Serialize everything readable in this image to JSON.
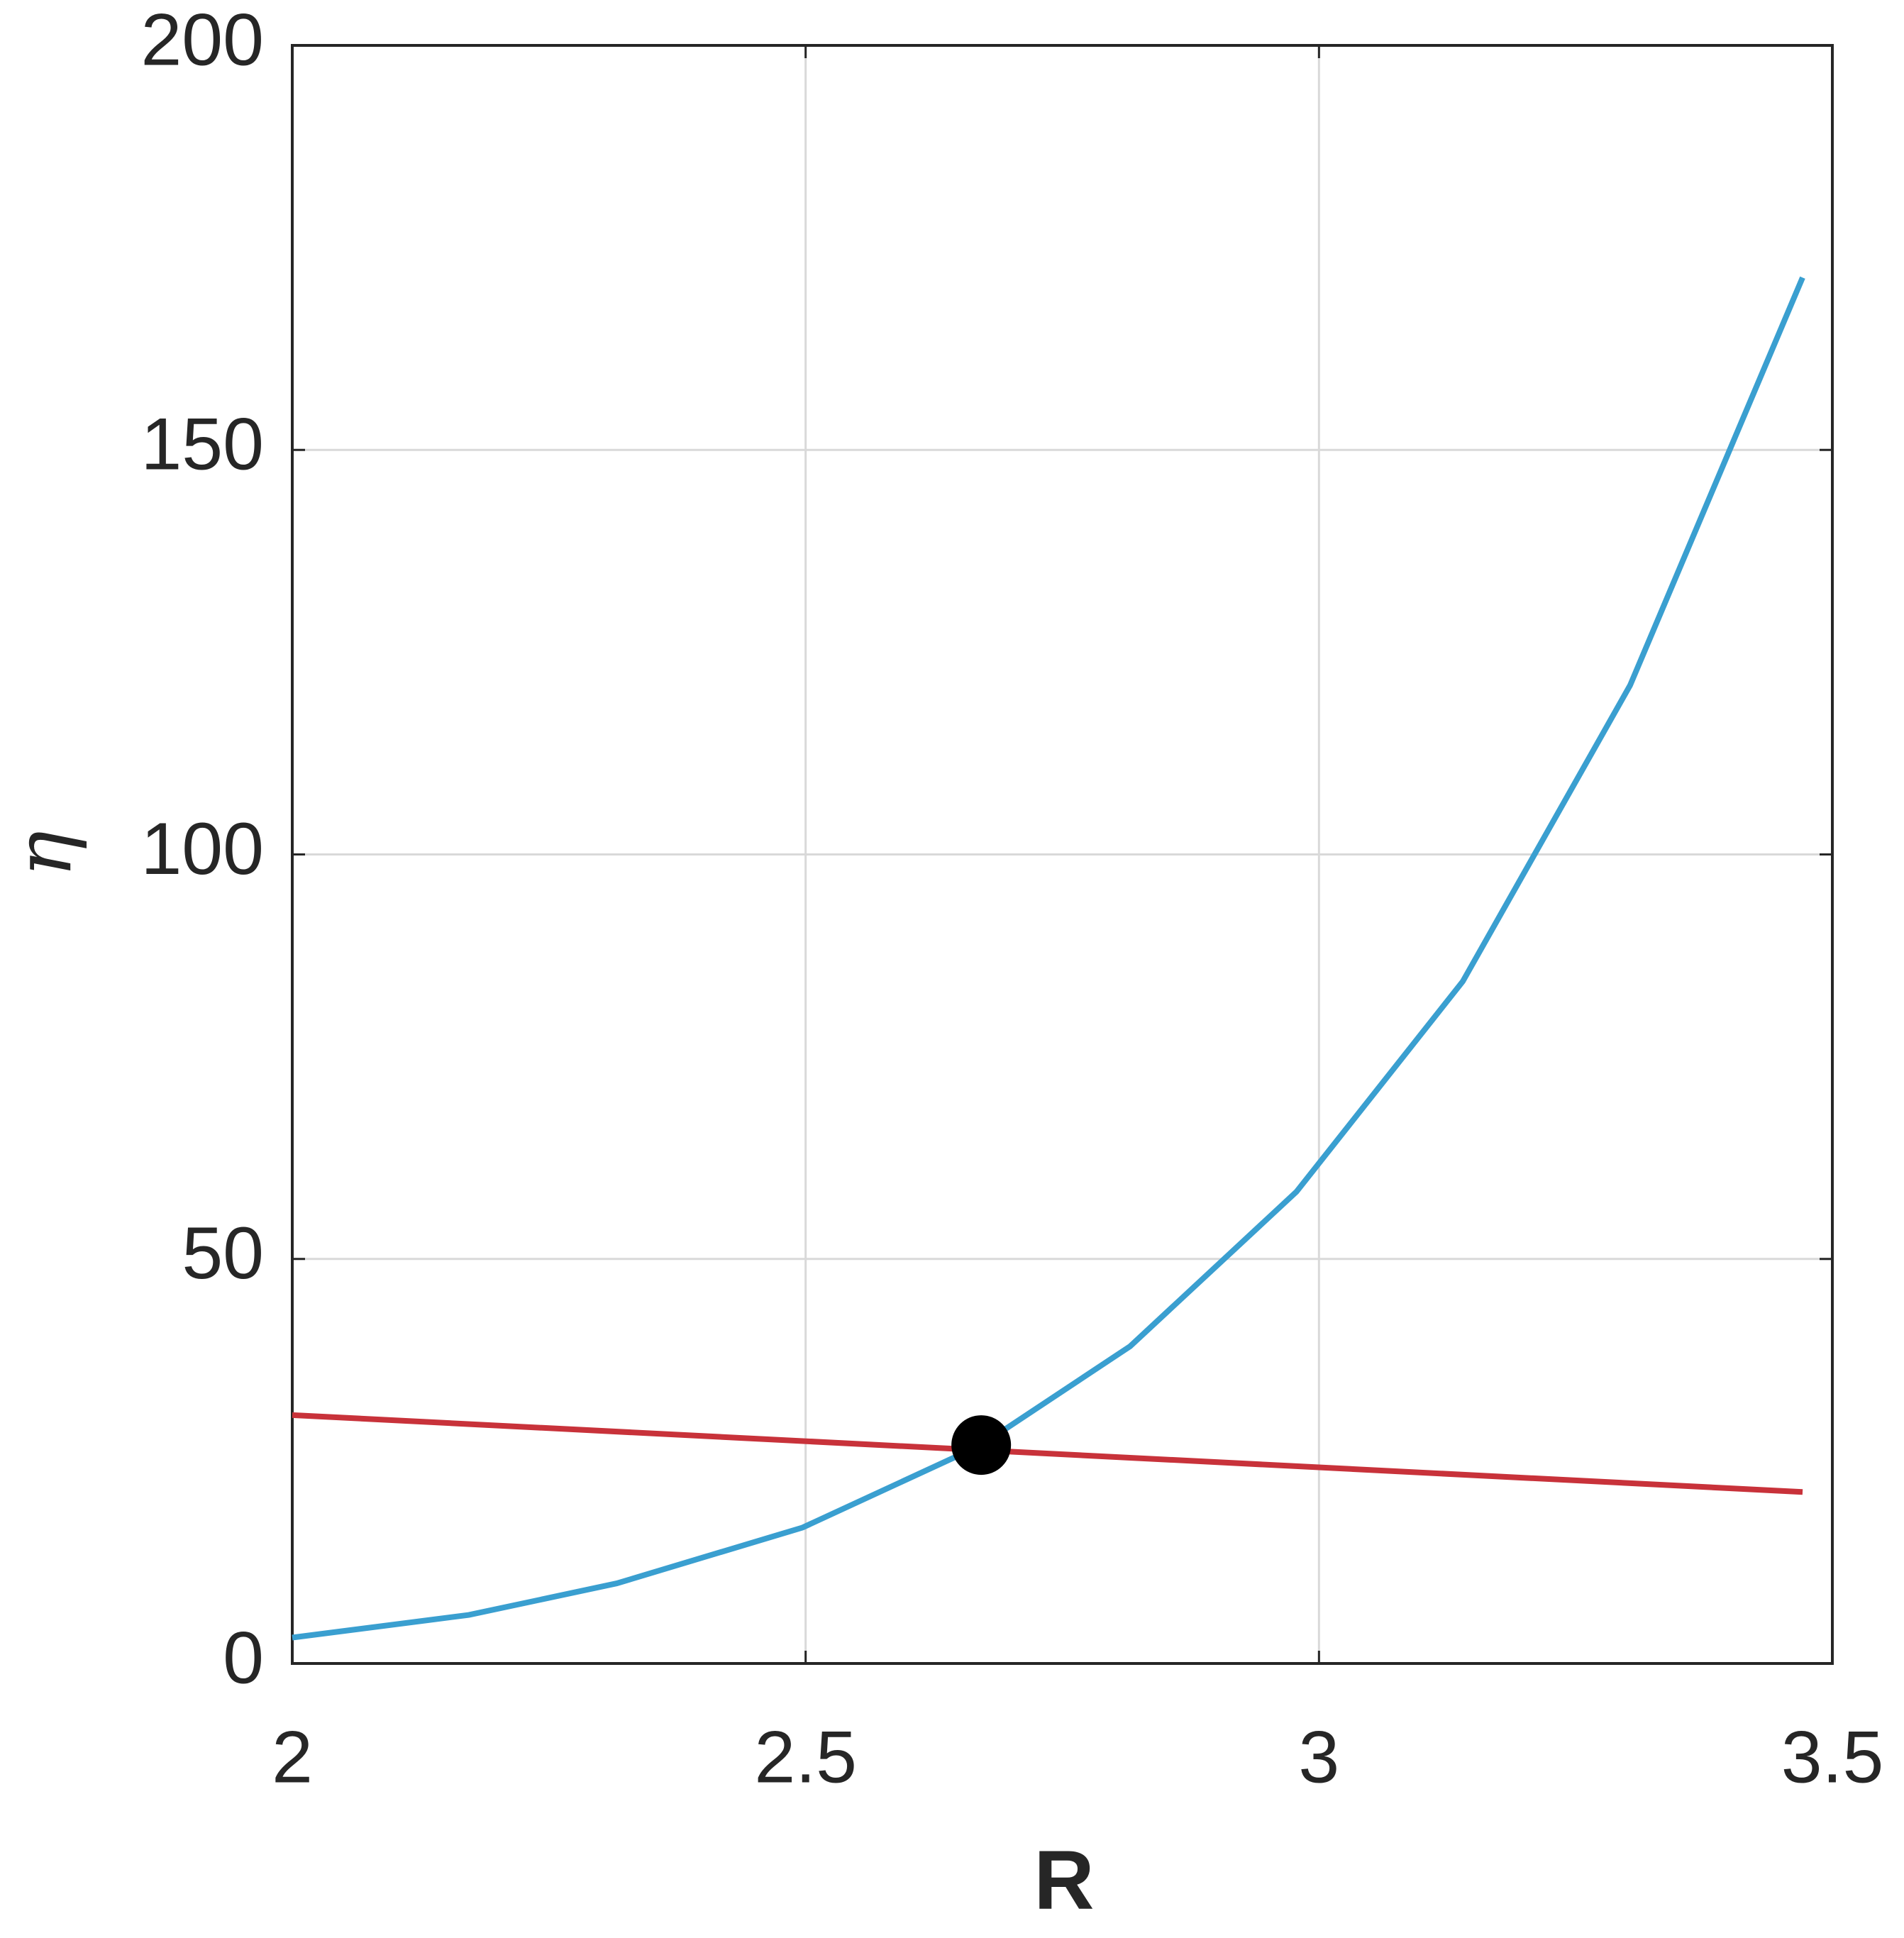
{
  "chart_data": {
    "type": "line",
    "xlabel": "R",
    "ylabel": "η",
    "xlim": [
      2,
      3.5
    ],
    "xticks": [
      2,
      2.5,
      3,
      3.5
    ],
    "ylim": [
      0,
      200
    ],
    "yticks": [
      0,
      50,
      100,
      150,
      200
    ],
    "grid": true,
    "series": [
      {
        "x": [
          2,
          2.172,
          2.316,
          2.497,
          2.671,
          2.816,
          2.978,
          3.14,
          3.303,
          3.471
        ],
        "values": [
          3.2,
          6.0,
          9.9,
          16.8,
          27.0,
          39.2,
          58.3,
          84.3,
          120.9,
          171.3
        ],
        "color": "#3a9fd0"
      },
      {
        "x": [
          2,
          3.471
        ],
        "values": [
          30.7,
          21.2
        ],
        "color": "#c8323a"
      }
    ],
    "points": [
      {
        "x": 2.671,
        "y": 27.0,
        "color": "#000000"
      }
    ]
  }
}
